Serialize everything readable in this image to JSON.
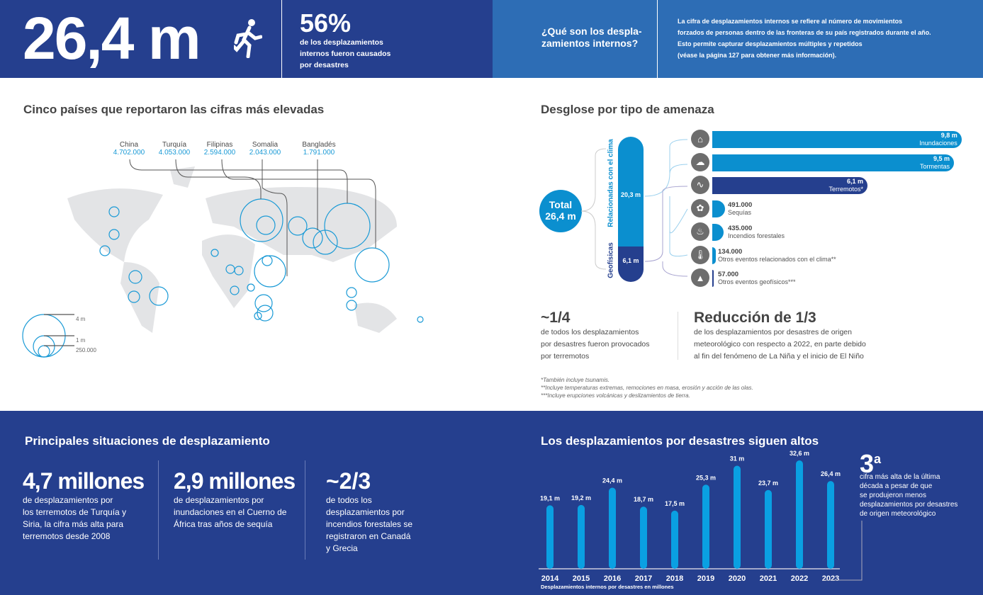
{
  "header": {
    "big_number": "26,4 m",
    "icon": "running-person-icon",
    "pct": "56%",
    "pct_text": [
      "de los desplazamientos",
      "internos fueron causados",
      "por desastres"
    ],
    "question": [
      "¿Qué son los despla-",
      "zamientos internos?"
    ],
    "definition": [
      "La cifra de desplazamientos internos se refiere al número de movimientos",
      "forzados de personas dentro de las fronteras de su país registrados durante el año.",
      "Esto permite capturar desplazamientos múltiples y repetidos",
      "(véase la página 127 para obtener más información)."
    ]
  },
  "map": {
    "title": "Cinco países que reportaron las cifras más elevadas",
    "countries": [
      {
        "name": "China",
        "value": "4.702.000"
      },
      {
        "name": "Turquía",
        "value": "4.053.000"
      },
      {
        "name": "Filipinas",
        "value": "2.594.000"
      },
      {
        "name": "Somalia",
        "value": "2.043.000"
      },
      {
        "name": "Bangladés",
        "value": "1.791.000"
      }
    ],
    "legend": [
      "4 m",
      "1 m",
      "250.000"
    ]
  },
  "hazard": {
    "title": "Desglose por tipo de amenaza",
    "total_label": "Total",
    "total_value": "26,4 m",
    "climate_label": "Relacionadas con el clima",
    "climate_value": "20,3 m",
    "geo_label": "Geofísicas",
    "geo_value": "6,1 m",
    "items": [
      {
        "value": "9,8 m",
        "label": "Inundaciones",
        "icon": "flood-icon",
        "amount": 9.8,
        "color": "#0b8fcf"
      },
      {
        "value": "9,5 m",
        "label": "Tormentas",
        "icon": "storm-icon",
        "amount": 9.5,
        "color": "#0b8fcf"
      },
      {
        "value": "6,1 m",
        "label": "Terremotos*",
        "icon": "earthquake-icon",
        "amount": 6.1,
        "color": "#253f8e"
      },
      {
        "value": "491.000",
        "label": "Sequías",
        "icon": "drought-icon",
        "amount": 0.491,
        "color": "#0b8fcf"
      },
      {
        "value": "435.000",
        "label": "Incendios forestales",
        "icon": "wildfire-icon",
        "amount": 0.435,
        "color": "#0b8fcf"
      },
      {
        "value": "134.000",
        "label": "Otros eventos relacionados con el clima**",
        "icon": "thermometer-icon",
        "amount": 0.134,
        "color": "#0b8fcf"
      },
      {
        "value": "57.000",
        "label": "Otros eventos geofísicos***",
        "icon": "volcano-icon",
        "amount": 0.057,
        "color": "#253f8e"
      }
    ]
  },
  "stats": {
    "quarter": "~1/4",
    "quarter_text": [
      "de todos los desplazamientos",
      "por desastres fueron provocados",
      "por terremotos"
    ],
    "reduction": "Reducción de 1/3",
    "reduction_text": [
      "de los desplazamientos por desastres de origen",
      "meteorológico con respecto a 2022, en parte debido",
      "al fin del fenómeno de La Niña y el inicio de El Niño"
    ]
  },
  "footnotes": [
    "*También incluye tsunamis.",
    "**Incluye temperaturas extremas, remociones en masa, erosión y acción de las olas.",
    "***Incluye erupciones volcánicas y deslizamientos de tierra."
  ],
  "situations": {
    "title": "Principales situaciones de desplazamiento",
    "items": [
      {
        "big": "4,7 millones",
        "text": [
          "de desplazamientos por",
          "los terremotos de Turquía y",
          "Siria, la cifra más alta para",
          "terremotos desde 2008"
        ]
      },
      {
        "big": "2,9 millones",
        "text": [
          "de desplazamientos por",
          "inundaciones en el Cuerno de",
          "África tras años de sequía"
        ]
      },
      {
        "big": "~2/3",
        "text": [
          "de todos los",
          "desplazamientos por",
          "incendios forestales se",
          "registraron en Canadá",
          "y Grecia"
        ]
      }
    ]
  },
  "chart_data": {
    "type": "bar",
    "title": "Los desplazamientos por desastres siguen altos",
    "categories": [
      "2014",
      "2015",
      "2016",
      "2017",
      "2018",
      "2019",
      "2020",
      "2021",
      "2022",
      "2023"
    ],
    "values": [
      19.1,
      19.2,
      24.4,
      18.7,
      17.5,
      25.3,
      31,
      23.7,
      32.6,
      26.4
    ],
    "labels": [
      "19,1 m",
      "19,2 m",
      "24,4 m",
      "18,7 m",
      "17,5 m",
      "25,3 m",
      "31 m",
      "23,7 m",
      "32,6 m",
      "26,4 m"
    ],
    "xlabel": "Desplazamientos internos por desastres en millones",
    "ylabel": "",
    "ylim": [
      0,
      32.6
    ],
    "color": "#0aa0e2"
  },
  "callout": {
    "rank": "3",
    "sup": "a",
    "text": [
      "cifra más alta de la última",
      "década a pesar de que",
      "se produjeron menos",
      "desplazamientos por desastres",
      "de origen meteorológico"
    ]
  }
}
